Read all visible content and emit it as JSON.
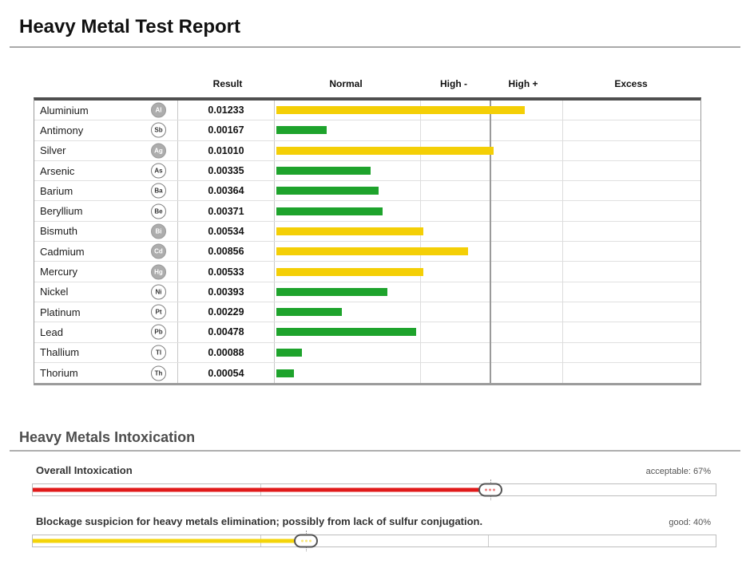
{
  "page": {
    "title": "Heavy Metal Test Report"
  },
  "report_table": {
    "headers": [
      "Result",
      "Normal",
      "High -",
      "High +",
      "Excess"
    ],
    "rows": [
      {
        "name": "Aluminium",
        "symbol": "Al",
        "result": "0.01233",
        "level": "high",
        "bar_pct": 58.4
      },
      {
        "name": "Antimony",
        "symbol": "Sb",
        "result": "0.00167",
        "level": "normal",
        "bar_pct": 11.9
      },
      {
        "name": "Silver",
        "symbol": "Ag",
        "result": "0.01010",
        "level": "high",
        "bar_pct": 51.0
      },
      {
        "name": "Arsenic",
        "symbol": "As",
        "result": "0.00335",
        "level": "normal",
        "bar_pct": 22.2
      },
      {
        "name": "Barium",
        "symbol": "Ba",
        "result": "0.00364",
        "level": "normal",
        "bar_pct": 24.1
      },
      {
        "name": "Beryllium",
        "symbol": "Be",
        "result": "0.00371",
        "level": "normal",
        "bar_pct": 25.0
      },
      {
        "name": "Bismuth",
        "symbol": "Bi",
        "result": "0.00534",
        "level": "high",
        "bar_pct": 34.5
      },
      {
        "name": "Cadmium",
        "symbol": "Cd",
        "result": "0.00856",
        "level": "high",
        "bar_pct": 45.0
      },
      {
        "name": "Mercury",
        "symbol": "Hg",
        "result": "0.00533",
        "level": "high",
        "bar_pct": 34.5
      },
      {
        "name": "Nickel",
        "symbol": "Ni",
        "result": "0.00393",
        "level": "normal",
        "bar_pct": 26.0
      },
      {
        "name": "Platinum",
        "symbol": "Pt",
        "result": "0.00229",
        "level": "normal",
        "bar_pct": 15.4
      },
      {
        "name": "Lead",
        "symbol": "Pb",
        "result": "0.00478",
        "level": "normal",
        "bar_pct": 32.8
      },
      {
        "name": "Thallium",
        "symbol": "Tl",
        "result": "0.00088",
        "level": "normal",
        "bar_pct": 6.0
      },
      {
        "name": "Thorium",
        "symbol": "Th",
        "result": "0.00054",
        "level": "normal",
        "bar_pct": 4.1
      }
    ]
  },
  "colors": {
    "bar_high": "#F4CF06",
    "bar_normal": "#1EA32C",
    "slider_red": "#E01A1A",
    "slider_yellow": "#F4D40A"
  },
  "intoxication": {
    "section_title": "Heavy Metals Intoxication",
    "sliders": [
      {
        "label": "Overall Intoxication",
        "status": "acceptable: 67%",
        "value_pct": 67,
        "color": "#E01A1A"
      },
      {
        "label": "Blockage suspicion for heavy metals elimination; possibly from lack of sulfur conjugation.",
        "status": "good: 40%",
        "value_pct": 40,
        "color": "#F4D40A"
      }
    ]
  },
  "chart_data": {
    "type": "bar",
    "orientation": "horizontal",
    "title": "Heavy Metal Test Report",
    "categories": [
      "Aluminium",
      "Antimony",
      "Silver",
      "Arsenic",
      "Barium",
      "Beryllium",
      "Bismuth",
      "Cadmium",
      "Mercury",
      "Nickel",
      "Platinum",
      "Lead",
      "Thallium",
      "Thorium"
    ],
    "values": [
      0.01233,
      0.00167,
      0.0101,
      0.00335,
      0.00364,
      0.00371,
      0.00534,
      0.00856,
      0.00533,
      0.00393,
      0.00229,
      0.00478,
      0.00088,
      0.00054
    ],
    "bar_colors": [
      "yellow",
      "green",
      "yellow",
      "green",
      "green",
      "green",
      "yellow",
      "yellow",
      "yellow",
      "green",
      "green",
      "green",
      "green",
      "green"
    ],
    "zones": {
      "labels": [
        "Normal",
        "High -",
        "High +",
        "Excess"
      ],
      "boundaries_pct": [
        0,
        34.1,
        50.5,
        67.4,
        100
      ]
    },
    "legend_position": "none",
    "grid": true
  }
}
